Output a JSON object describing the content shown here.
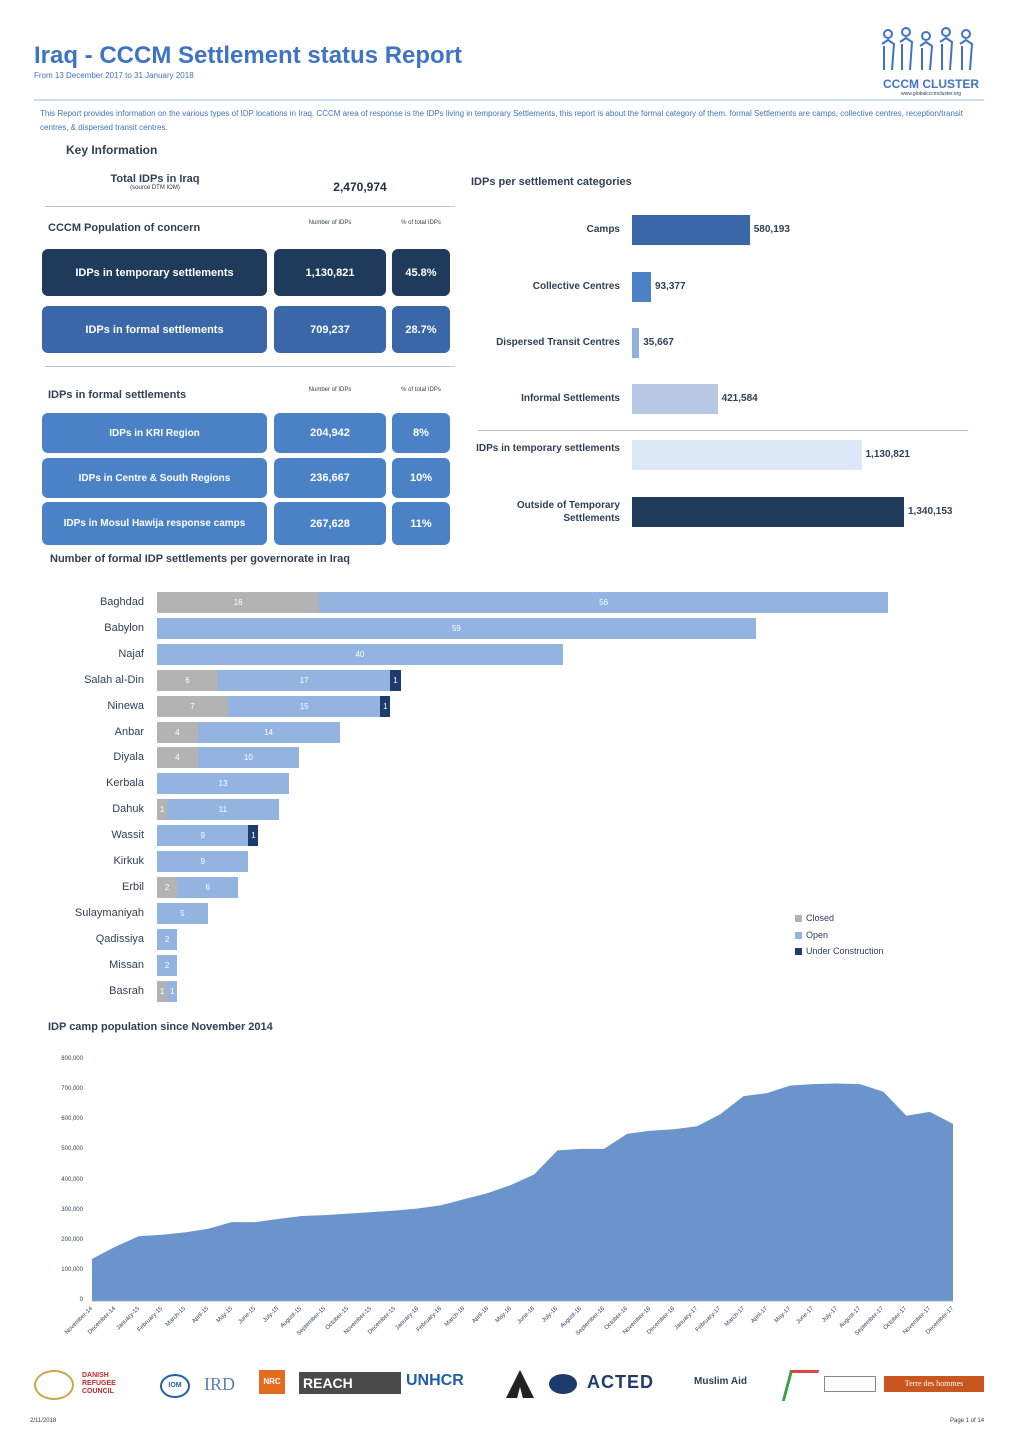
{
  "header": {
    "title": "Iraq -  CCCM Settlement status Report",
    "subtitle": "From 13 December 2017 to  31 January 2018",
    "logo_text": "CCCM CLUSTER",
    "logo_sub": "www.globalcccmcluster.org"
  },
  "intro": "This Report provides information on the various types of IDP locations in Iraq. CCCM area of response is the IDPs living in temporary Settlements, this report is about the formal category of them. formal Settlements are camps, collective centres, reception/transit centres, & dispersed transit centres.",
  "key_info": {
    "heading": "Key Information",
    "total_label": "Total IDPs in Iraq",
    "total_source": "(source DTM IOM)",
    "total_value": "2,470,974",
    "poc_heading": "CCCM Population of concern",
    "col_number": "Number of IDPs",
    "col_percent": "% of total IDPs",
    "rows": [
      {
        "label": "IDPs in temporary settlements",
        "number": "1,130,821",
        "percent": "45.8%"
      },
      {
        "label": "IDPs in formal settlements",
        "number": "709,237",
        "percent": "28.7%"
      }
    ],
    "formal_heading": "IDPs in formal settlements",
    "formal_rows": [
      {
        "label": "IDPs in KRI Region",
        "number": "204,942",
        "percent": "8%"
      },
      {
        "label": "IDPs in Centre & South Regions",
        "number": "236,667",
        "percent": "10%"
      },
      {
        "label": "IDPs in Mosul Hawija response camps",
        "number": "267,628",
        "percent": "11%"
      }
    ]
  },
  "chart_data": [
    {
      "type": "bar",
      "orientation": "horizontal",
      "title": "IDPs per settlement categories",
      "categories": [
        "Camps",
        "Collective Centres",
        "Dispersed Transit Centres",
        "Informal Settlements",
        "IDPs in temporary settlements",
        "Outside of Temporary Settlements"
      ],
      "values": [
        580193,
        93377,
        35667,
        421584,
        1130821,
        1340153
      ],
      "labels": [
        "580,193",
        "93,377",
        "35,667",
        "421,584",
        "1,130,821",
        "1,340,153"
      ],
      "colors": [
        "#3a67a8",
        "#4b82c6",
        "#8fb0de",
        "#b7c8e4",
        "#dde8f6",
        "#1f3b5c"
      ]
    },
    {
      "type": "bar",
      "orientation": "horizontal",
      "stacked": true,
      "title": "Number of formal IDP settlements per governorate in Iraq",
      "categories": [
        "Baghdad",
        "Babylon",
        "Najaf",
        "Salah al-Din",
        "Ninewa",
        "Anbar",
        "Diyala",
        "Kerbala",
        "Dahuk",
        "Wassit",
        "Kirkuk",
        "Erbil",
        "Sulaymaniyah",
        "Qadissiya",
        "Missan",
        "Basrah"
      ],
      "series": [
        {
          "name": "Closed",
          "color": "#b3b3b3",
          "values": [
            16,
            0,
            0,
            6,
            7,
            4,
            4,
            0,
            1,
            0,
            0,
            2,
            0,
            0,
            0,
            1
          ]
        },
        {
          "name": "Open",
          "color": "#93b3e0",
          "values": [
            56,
            59,
            40,
            17,
            15,
            14,
            10,
            13,
            11,
            9,
            9,
            6,
            5,
            2,
            2,
            1
          ]
        },
        {
          "name": "Under Construction",
          "color": "#1f3b6e",
          "values": [
            0,
            0,
            0,
            1,
            1,
            0,
            0,
            0,
            0,
            1,
            0,
            0,
            0,
            0,
            0,
            0
          ]
        }
      ],
      "legend": "right"
    },
    {
      "type": "area",
      "title": "IDP camp population since November 2014",
      "ylim": [
        0,
        800000
      ],
      "yticks": [
        "0",
        "100,000",
        "200,000",
        "300,000",
        "400,000",
        "500,000",
        "600,000",
        "700,000",
        "800,000"
      ],
      "x": [
        "November-14",
        "December-14",
        "January-15",
        "February-15",
        "March-15",
        "April-15",
        "May-15",
        "June-15",
        "July-15",
        "August-15",
        "September-15",
        "October-15",
        "November-15",
        "December-15",
        "January-16",
        "February-16",
        "March-16",
        "April-16",
        "May-16",
        "June-16",
        "July-16",
        "August-16",
        "September-16",
        "October-16",
        "November-16",
        "December-16",
        "January-17",
        "February-17",
        "March-17",
        "April-17",
        "May-17",
        "June-17",
        "July-17",
        "August-17",
        "September-17",
        "October-17",
        "November-17",
        "December-17"
      ],
      "values": [
        140000,
        180000,
        215000,
        220000,
        228000,
        240000,
        262000,
        262000,
        272000,
        282000,
        285000,
        290000,
        295000,
        300000,
        307000,
        318000,
        338000,
        358000,
        385000,
        420000,
        500000,
        505000,
        505000,
        555000,
        565000,
        570000,
        580000,
        620000,
        680000,
        690000,
        715000,
        720000,
        722000,
        720000,
        695000,
        615000,
        628000,
        588000
      ],
      "color": "#6b94cc"
    }
  ],
  "footer": {
    "date": "2/11/2018",
    "page": "Page 1 of 14",
    "logos": [
      "Government of Iraq",
      "DANISH REFUGEE COUNCIL",
      "IOM",
      "IRD",
      "NRC",
      "REACH",
      "UNHCR",
      "ACTED",
      "Muslim Aid",
      "Terre des hommes"
    ]
  }
}
